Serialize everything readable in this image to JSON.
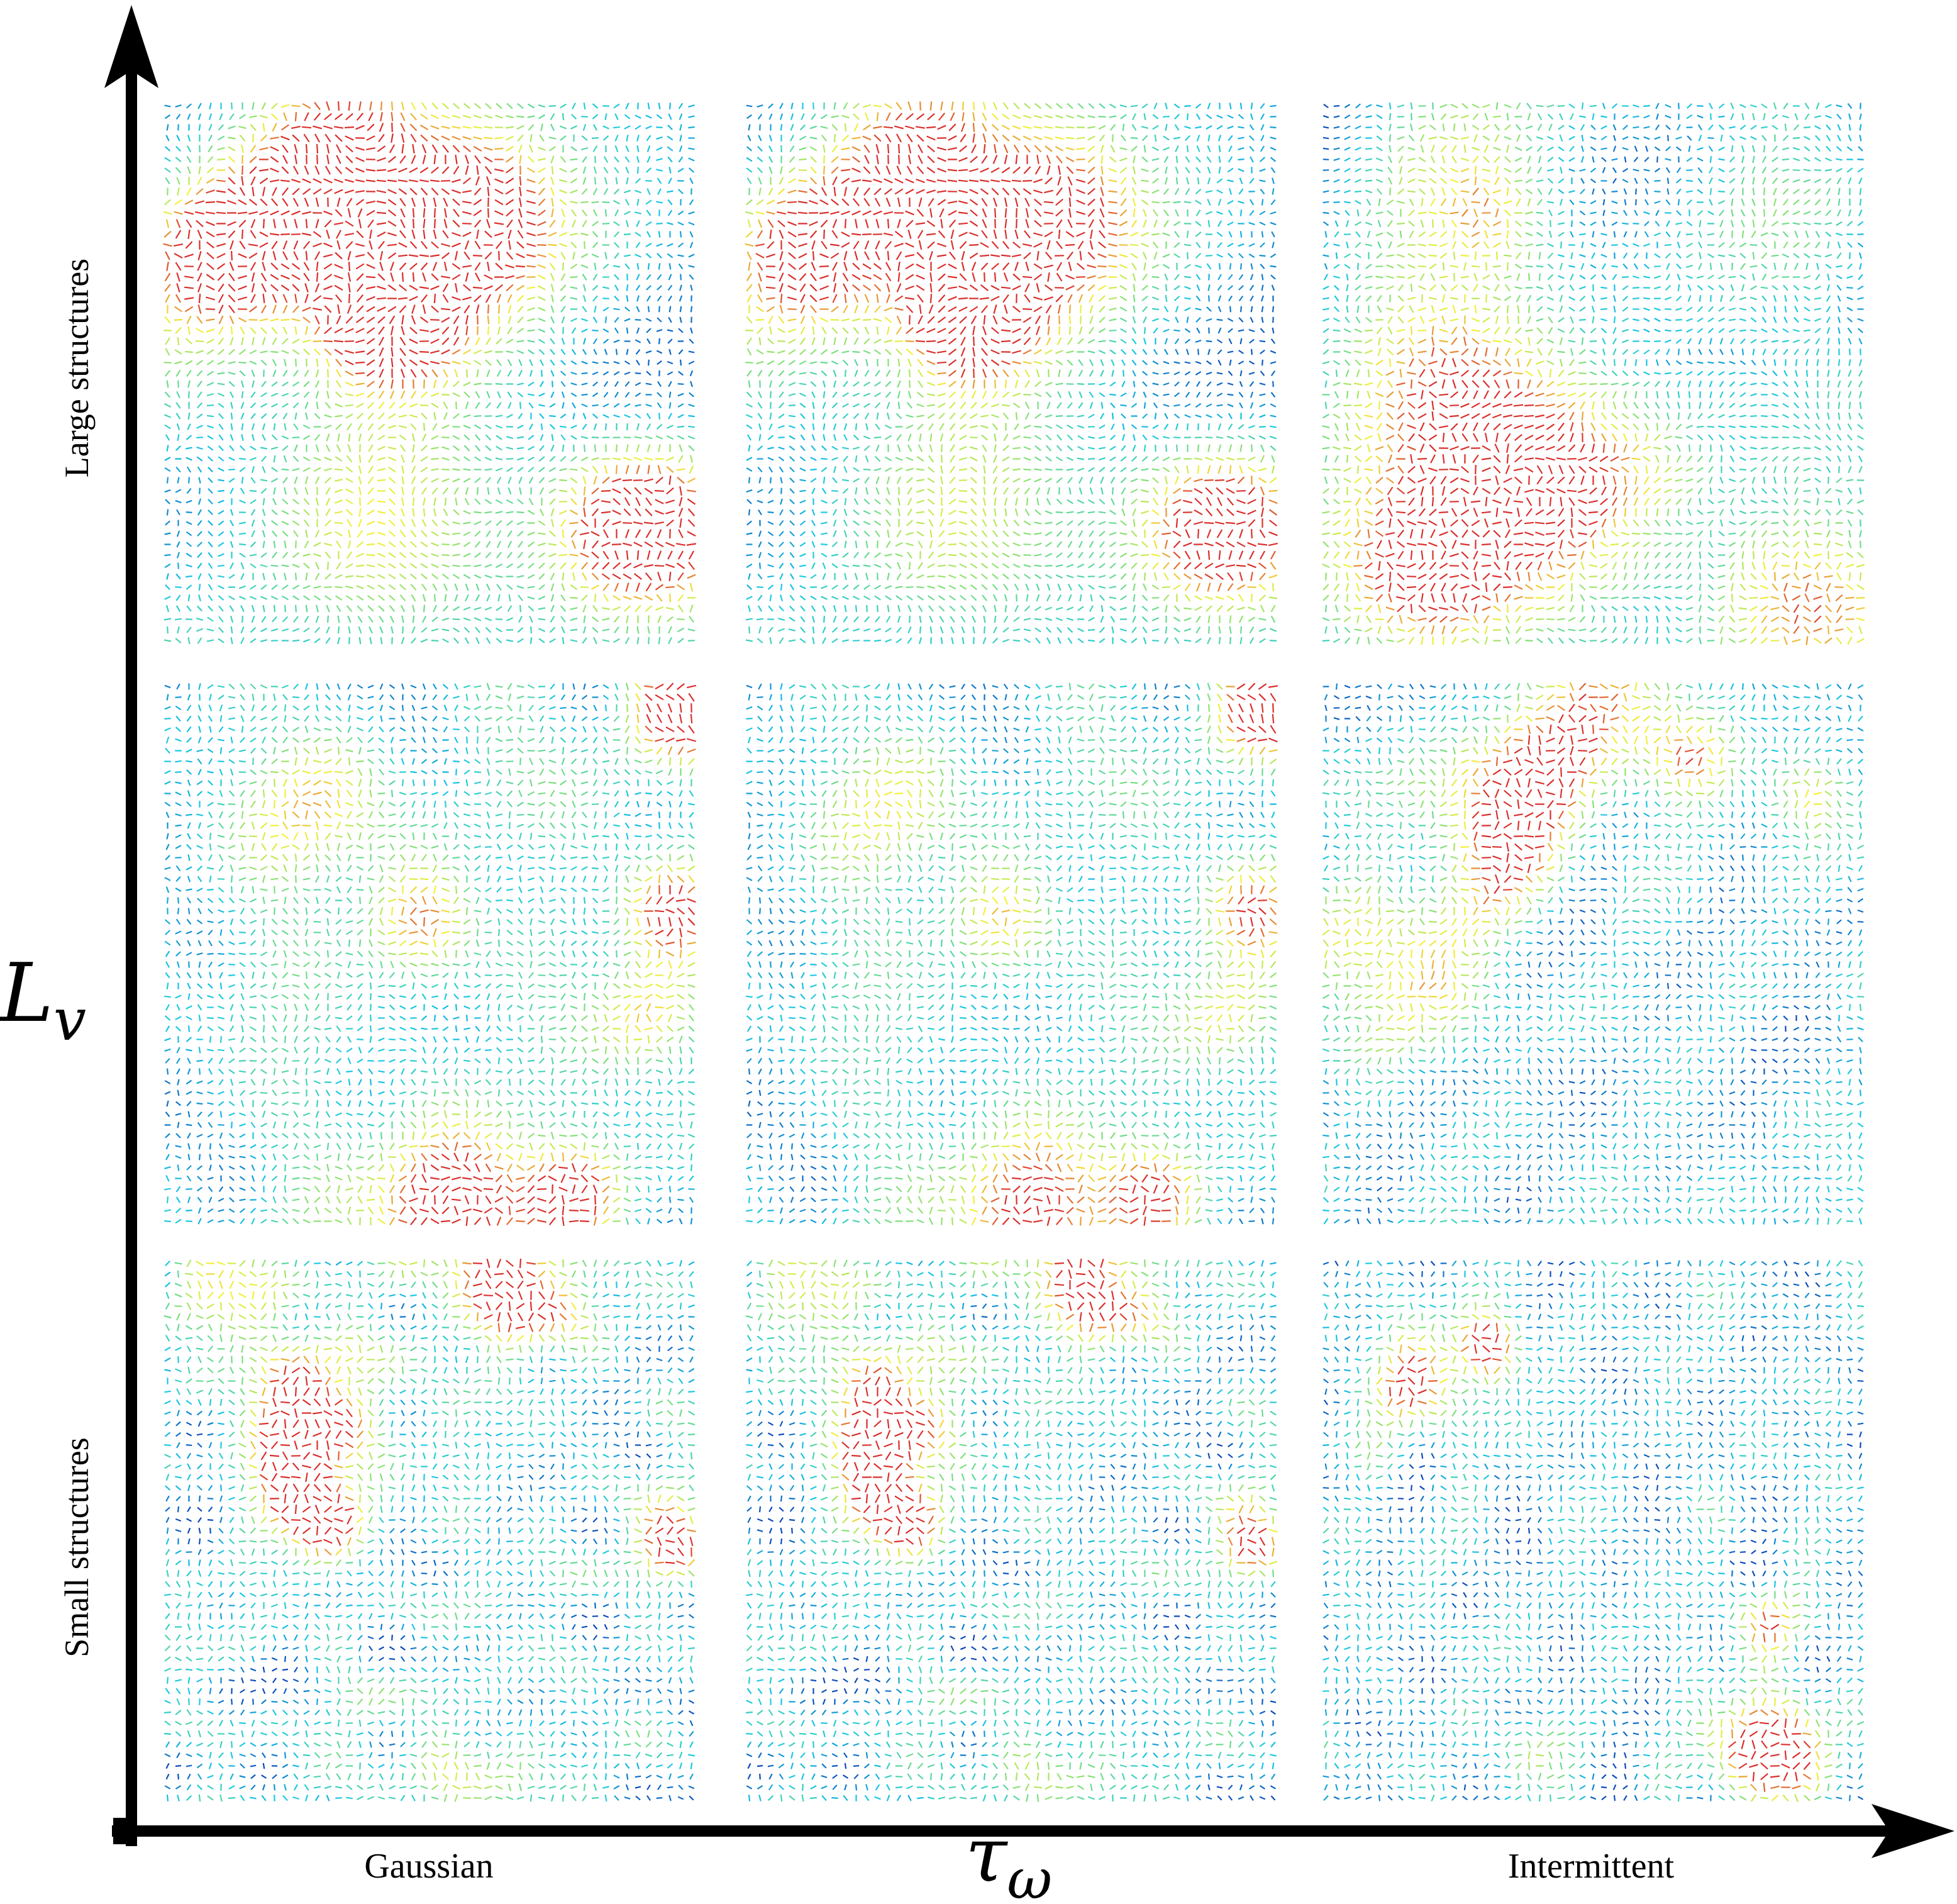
{
  "axes": {
    "y_axis": {
      "symbol_main": "L",
      "symbol_sub": "v",
      "top_label": "Large structures",
      "bottom_label": "Small structures"
    },
    "x_axis": {
      "symbol_main": "τ",
      "symbol_sub": "ω",
      "left_label": "Gaussian",
      "right_label": "Intermittent"
    }
  },
  "grid": {
    "rows": [
      "Large structures",
      "",
      "Small structures"
    ],
    "columns": [
      "Gaussian",
      "",
      "Intermittent"
    ]
  },
  "colormap": {
    "name": "jet",
    "low": "#0a3fb8",
    "mid_low": "#18c8e6",
    "mid": "#7fe07a",
    "mid_high": "#f4f03a",
    "high": "#d81e2a"
  },
  "panels": [
    {
      "row": 0,
      "col": 0,
      "structure_scale": 1.0,
      "intermittency": 0.0,
      "seed": 11
    },
    {
      "row": 0,
      "col": 1,
      "structure_scale": 1.0,
      "intermittency": 0.25,
      "seed": 11
    },
    {
      "row": 0,
      "col": 2,
      "structure_scale": 1.0,
      "intermittency": 0.8,
      "seed": 23
    },
    {
      "row": 1,
      "col": 0,
      "structure_scale": 0.6,
      "intermittency": 0.0,
      "seed": 37
    },
    {
      "row": 1,
      "col": 1,
      "structure_scale": 0.6,
      "intermittency": 0.25,
      "seed": 37
    },
    {
      "row": 1,
      "col": 2,
      "structure_scale": 0.6,
      "intermittency": 0.8,
      "seed": 41
    },
    {
      "row": 2,
      "col": 0,
      "structure_scale": 0.35,
      "intermittency": 0.0,
      "seed": 53
    },
    {
      "row": 2,
      "col": 1,
      "structure_scale": 0.35,
      "intermittency": 0.25,
      "seed": 53
    },
    {
      "row": 2,
      "col": 2,
      "structure_scale": 0.35,
      "intermittency": 0.8,
      "seed": 61
    }
  ]
}
